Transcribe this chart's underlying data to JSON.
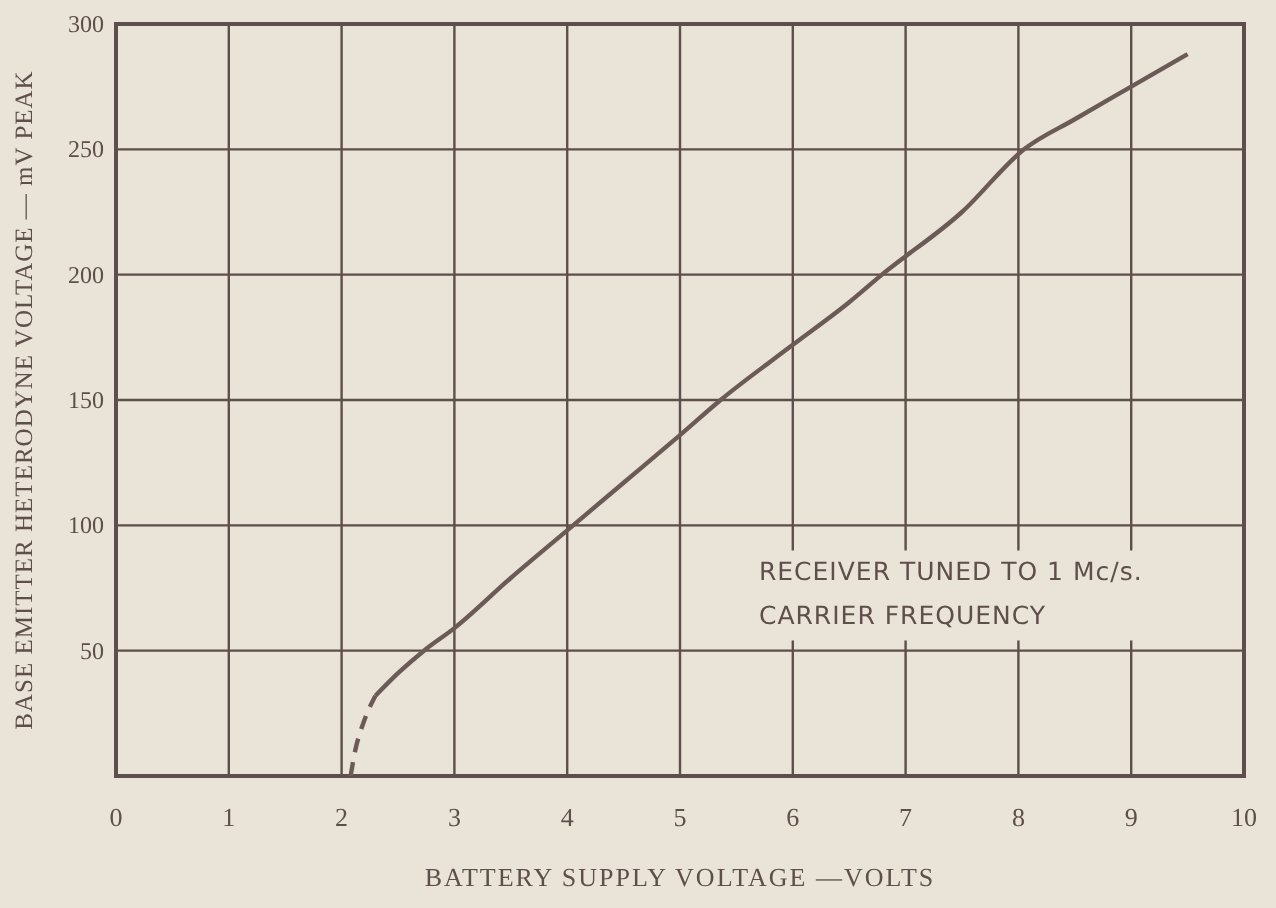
{
  "chart_data": {
    "type": "line",
    "xlabel": "BATTERY SUPPLY VOLTAGE  —VOLTS",
    "ylabel": "BASE EMITTER HETERODYNE VOLTAGE — mV PEAK",
    "annotations": [
      "RECEIVER TUNED TO 1 Mc/s.\nCARRIER FREQUENCY"
    ],
    "series": [
      {
        "color": "#6b5a55",
        "line_style": "dashed",
        "x": [
          2.08,
          2.12,
          2.2,
          2.3
        ],
        "values": [
          0,
          10,
          22,
          32
        ]
      },
      {
        "color": "#6b5a55",
        "line_style": "solid",
        "x": [
          2.3,
          2.5,
          2.73,
          3,
          3.5,
          4,
          4.5,
          5,
          5.36,
          6,
          6.5,
          6.79,
          7.5,
          8.05,
          8.5,
          9,
          9.5
        ],
        "values": [
          32,
          41,
          50,
          59,
          79,
          98,
          117,
          136,
          150,
          172,
          189,
          200,
          225,
          250,
          262,
          275,
          288
        ]
      }
    ],
    "xlim": [
      0,
      10
    ],
    "ylim": [
      0,
      300
    ],
    "xticks": [
      0,
      1,
      2,
      3,
      4,
      5,
      6,
      7,
      8,
      9,
      10
    ],
    "yticks": [
      {
        "value": 0,
        "label": null
      },
      50,
      100,
      150,
      200,
      250,
      300
    ],
    "grid": true,
    "marker": "none"
  }
}
